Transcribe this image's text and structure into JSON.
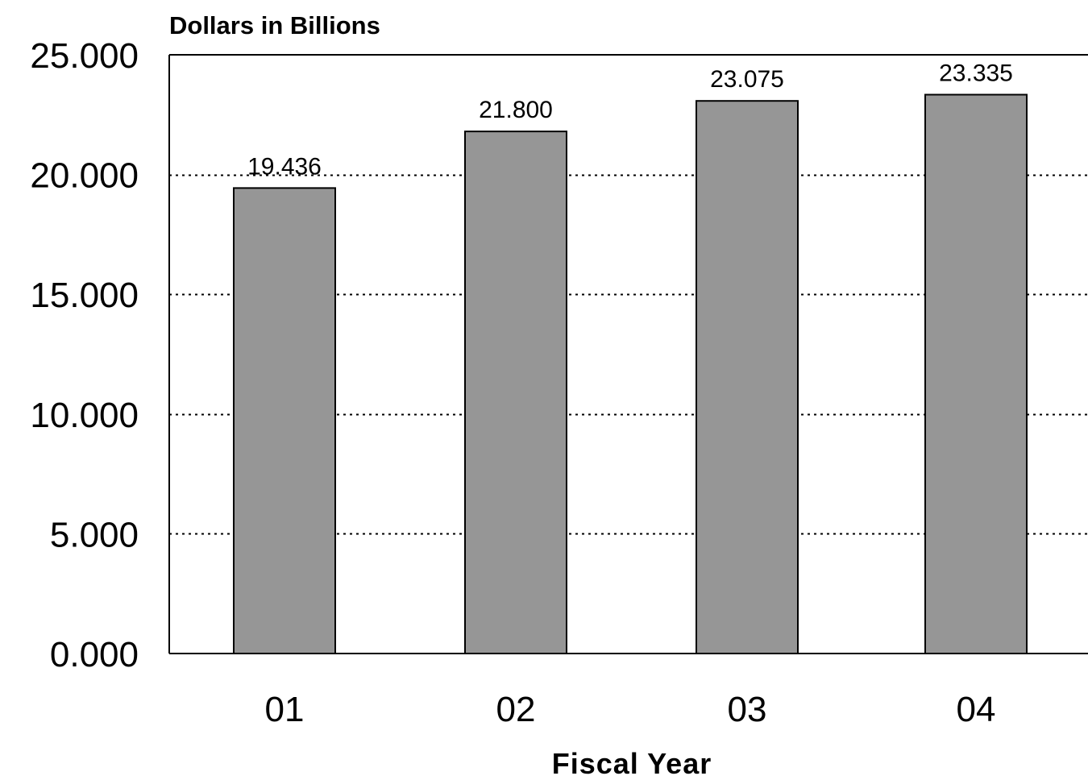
{
  "chart_data": {
    "type": "bar",
    "title": "",
    "ylabel": "Dollars in Billions",
    "xlabel": "Fiscal Year",
    "categories": [
      "01",
      "02",
      "03",
      "04"
    ],
    "values": [
      19.436,
      21.8,
      23.075,
      23.335
    ],
    "value_labels": [
      "19.436",
      "21.800",
      "23.075",
      "23.335"
    ],
    "ylim": [
      0,
      25
    ],
    "yticks": [
      0,
      5,
      10,
      15,
      20,
      25
    ],
    "ytick_labels": [
      "0.000",
      "5.000",
      "10.000",
      "15.000",
      "20.000",
      "25.000"
    ],
    "grid": "horizontal dotted",
    "legend": "none",
    "colors": {
      "bar_fill": "#969696",
      "bar_stroke": "#000000",
      "grid": "#000000"
    }
  }
}
